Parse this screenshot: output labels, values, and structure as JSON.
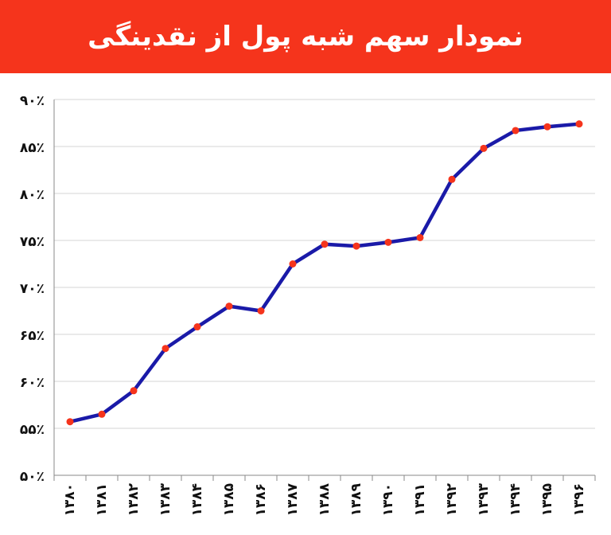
{
  "chart_data": {
    "type": "line",
    "title": "نمودار سهم شبه پول از نقدینگی",
    "xlabel": "",
    "ylabel": "",
    "categories": [
      "۱۳۸۰",
      "۱۳۸۱",
      "۱۳۸۲",
      "۱۳۸۳",
      "۱۳۸۴",
      "۱۳۸۵",
      "۱۳۸۶",
      "۱۳۸۷",
      "۱۳۸۸",
      "۱۳۸۹",
      "۱۳۹۰",
      "۱۳۹۱",
      "۱۳۹۲",
      "۱۳۹۳",
      "۱۳۹۴",
      "۱۳۹۵",
      "۱۳۹۶"
    ],
    "values": [
      55.7,
      56.5,
      59.0,
      63.5,
      65.8,
      68.0,
      67.5,
      72.5,
      74.6,
      74.4,
      74.8,
      75.3,
      81.5,
      84.8,
      86.7,
      87.1,
      87.4
    ],
    "ylim": [
      50,
      90
    ],
    "yticks": [
      50,
      55,
      60,
      65,
      70,
      75,
      80,
      85,
      90
    ],
    "ytick_labels": [
      "۵۰٪",
      "۵۵٪",
      "۶۰٪",
      "۶۵٪",
      "۷۰٪",
      "۷۵٪",
      "۸۰٪",
      "۸۵٪",
      "۹۰٪"
    ],
    "grid": true,
    "line_color": "#1a1aa8",
    "marker_color": "#f5341c",
    "header_color": "#f5341c"
  }
}
